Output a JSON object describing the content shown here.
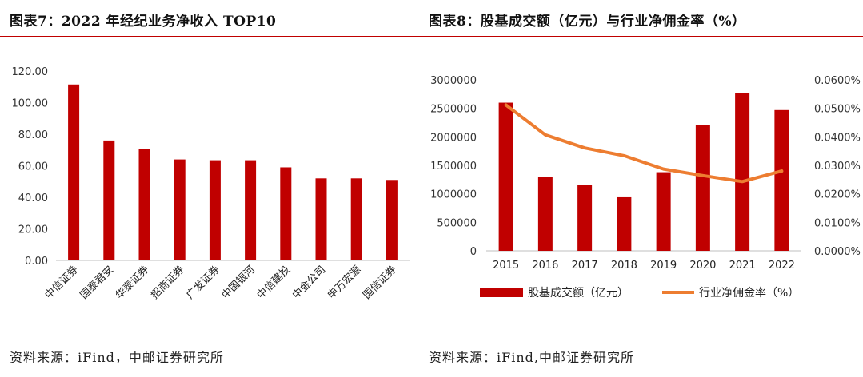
{
  "left": {
    "title": "图表7：2022 年经纪业务净收入 TOP10",
    "source": "资料来源：iFind，中邮证券研究所"
  },
  "right": {
    "title": "图表8：股基成交额（亿元）与行业净佣金率（%）",
    "source": "资料来源：iFind,中邮证券研究所"
  },
  "colors": {
    "bar": "#c00000",
    "line": "#ed7d31",
    "rule": "#c00000"
  },
  "chart_data": [
    {
      "type": "bar",
      "categories": [
        "中信证券",
        "国泰君安",
        "华泰证券",
        "招商证券",
        "广发证券",
        "中国银河",
        "中信建投",
        "中金公司",
        "申万宏源",
        "国信证券"
      ],
      "values": [
        111.5,
        76,
        70.5,
        64,
        63.5,
        63.5,
        59,
        52,
        52,
        51
      ],
      "ylim": [
        0,
        120
      ],
      "yticks": [
        "0.00",
        "20.00",
        "40.00",
        "60.00",
        "80.00",
        "100.00",
        "120.00"
      ],
      "grid": false,
      "legend": "none"
    },
    {
      "type": "bar+line",
      "categories": [
        "2015",
        "2016",
        "2017",
        "2018",
        "2019",
        "2020",
        "2021",
        "2022"
      ],
      "series": [
        {
          "name": "股基成交额（亿元）",
          "type": "bar",
          "axis": "left",
          "values": [
            2600000,
            1300000,
            1150000,
            940000,
            1380000,
            2210000,
            2770000,
            2470000
          ]
        },
        {
          "name": "行业净佣金率（%）",
          "type": "line",
          "axis": "right",
          "values": [
            0.0512,
            0.0407,
            0.0361,
            0.0334,
            0.0287,
            0.0264,
            0.0243,
            0.028
          ]
        }
      ],
      "ylim": [
        0,
        3000000
      ],
      "yticks": [
        "0",
        "500000",
        "1000000",
        "1500000",
        "2000000",
        "2500000",
        "3000000"
      ],
      "y2lim": [
        0,
        0.06
      ],
      "y2ticks": [
        "0.0000%",
        "0.0100%",
        "0.0200%",
        "0.0300%",
        "0.0400%",
        "0.0500%",
        "0.0600%"
      ],
      "grid": false,
      "legend": "bottom"
    }
  ]
}
